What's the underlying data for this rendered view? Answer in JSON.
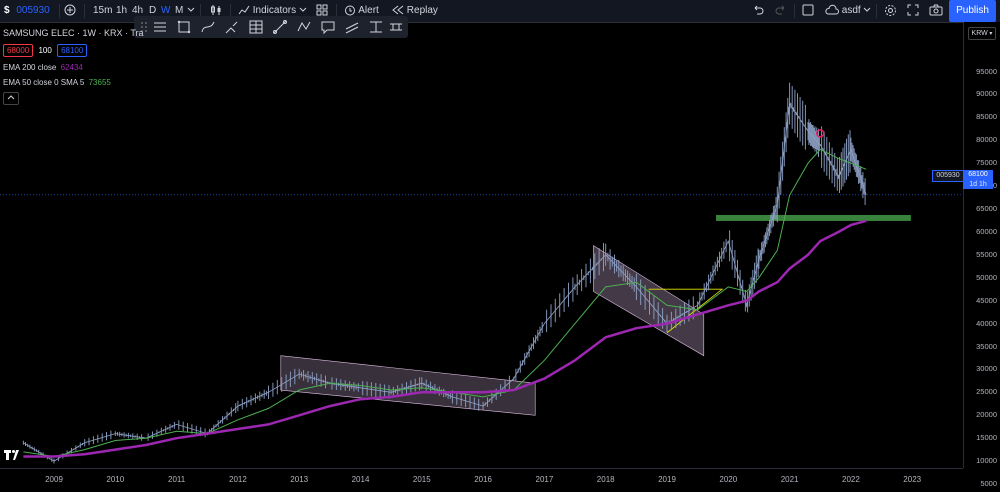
{
  "toolbar": {
    "symbol": "005930",
    "intervals": [
      "15m",
      "1h",
      "4h",
      "D",
      "W",
      "M"
    ],
    "active_interval": "W",
    "indicators_label": "Indicators",
    "alert_label": "Alert",
    "replay_label": "Replay",
    "layout_name": "asdf",
    "publish_label": "Publish"
  },
  "legend": {
    "title": "SAMSUNG ELEC · 1W · KRX · Tra",
    "bid": "68000",
    "spread": "100",
    "ask": "68100",
    "ema200_label": "EMA 200 close",
    "ema200_value": "62434",
    "ema50_label": "EMA 50 close 0 SMA 5",
    "ema50_value": "73655"
  },
  "axis": {
    "currency": "KRW",
    "price_ticks": [
      "95000",
      "90000",
      "85000",
      "80000",
      "75000",
      "70000",
      "65000",
      "60000",
      "55000",
      "50000",
      "45000",
      "40000",
      "35000",
      "30000",
      "25000",
      "20000",
      "15000",
      "10000",
      "5000"
    ],
    "year_ticks": [
      "2009",
      "2010",
      "2011",
      "2012",
      "2013",
      "2014",
      "2015",
      "2016",
      "2017",
      "2018",
      "2019",
      "2020",
      "2021",
      "2022",
      "2023"
    ],
    "price_tag_symbol": "005930",
    "price_tag_value": "68100",
    "price_tag_time": "1d 1h"
  },
  "colors": {
    "bg": "#000000",
    "candles": "#8fa3c8",
    "ema200": "#9c27b0",
    "ema50": "#4caf50",
    "channel": "#e1bee7",
    "support": "#4caf50",
    "accent": "#2962ff"
  },
  "chart_data": {
    "type": "line",
    "title": "SAMSUNG ELEC · 1W · KRX",
    "xlabel": "",
    "ylabel": "",
    "ylim": [
      5000,
      95000
    ],
    "x": [
      2008.5,
      2009,
      2009.5,
      2010,
      2010.5,
      2011,
      2011.5,
      2012,
      2012.5,
      2013,
      2013.5,
      2014,
      2014.5,
      2015,
      2015.5,
      2016,
      2016.5,
      2017,
      2017.5,
      2018,
      2018.5,
      2019,
      2019.5,
      2020,
      2020.3,
      2020.5,
      2020.8,
      2021,
      2021.3,
      2021.5,
      2021.8,
      2022,
      2022.25
    ],
    "series": [
      {
        "name": "price",
        "values": [
          14000,
          10000,
          14000,
          16000,
          15000,
          18000,
          16000,
          22000,
          25000,
          29000,
          27000,
          26000,
          25000,
          27000,
          24000,
          22000,
          28000,
          40000,
          48000,
          55000,
          48000,
          40000,
          44000,
          58000,
          44000,
          54000,
          66000,
          88000,
          82000,
          79000,
          72000,
          78000,
          68100
        ]
      },
      {
        "name": "EMA 200 close",
        "values": [
          11000,
          11000,
          11500,
          12500,
          13500,
          15000,
          16000,
          17000,
          18000,
          20000,
          22000,
          23500,
          24000,
          25000,
          25000,
          25000,
          25500,
          28000,
          32000,
          37000,
          39000,
          40000,
          42000,
          44000,
          45000,
          47000,
          49000,
          52000,
          55000,
          58000,
          60000,
          61500,
          62434
        ]
      },
      {
        "name": "EMA 50 close 0 SMA 5",
        "values": [
          12000,
          11000,
          12500,
          14500,
          15000,
          16500,
          16000,
          19000,
          21500,
          25500,
          27000,
          26500,
          25500,
          26000,
          25000,
          24000,
          25500,
          32000,
          40000,
          48000,
          49000,
          44000,
          43000,
          48000,
          47000,
          50000,
          56000,
          68000,
          75000,
          78000,
          76000,
          75000,
          73655
        ]
      }
    ]
  }
}
